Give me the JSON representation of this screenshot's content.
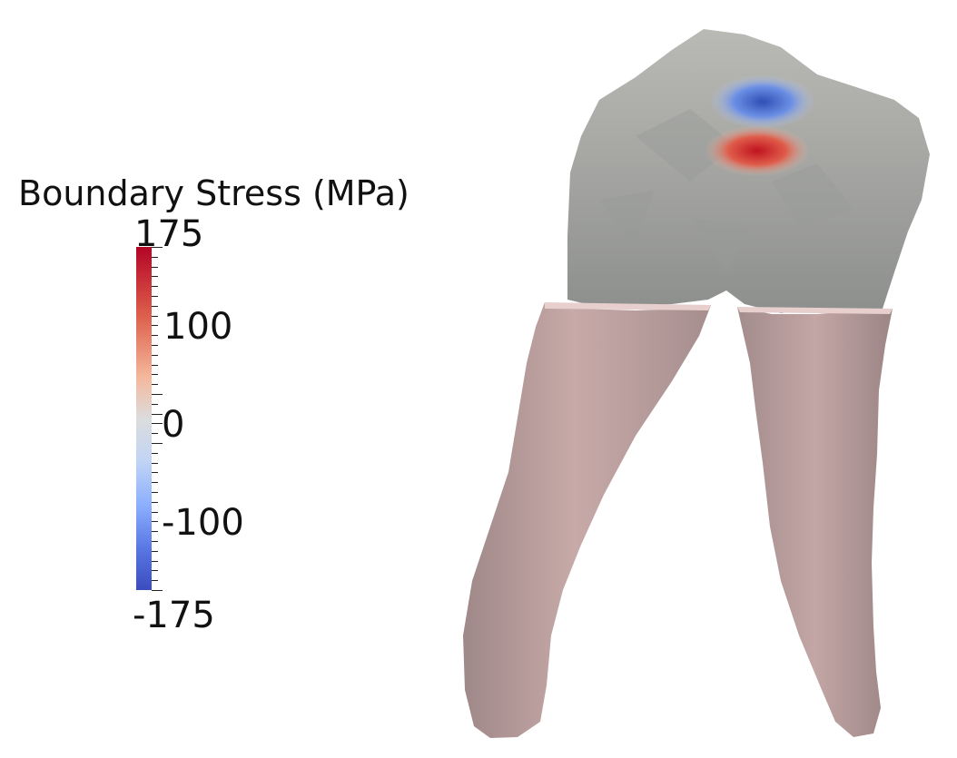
{
  "legend": {
    "title": "Boundary Stress (MPa)",
    "max_label": "175",
    "label_100": "100",
    "label_0": "0",
    "label_neg100": "-100",
    "min_label": "-175"
  },
  "colormap": {
    "high": "#b40426",
    "mid": "#dcdcdc",
    "low": "#3b4cc0"
  },
  "colors": {
    "crown": "#a9aaa6",
    "root": "#bfa4a4"
  }
}
